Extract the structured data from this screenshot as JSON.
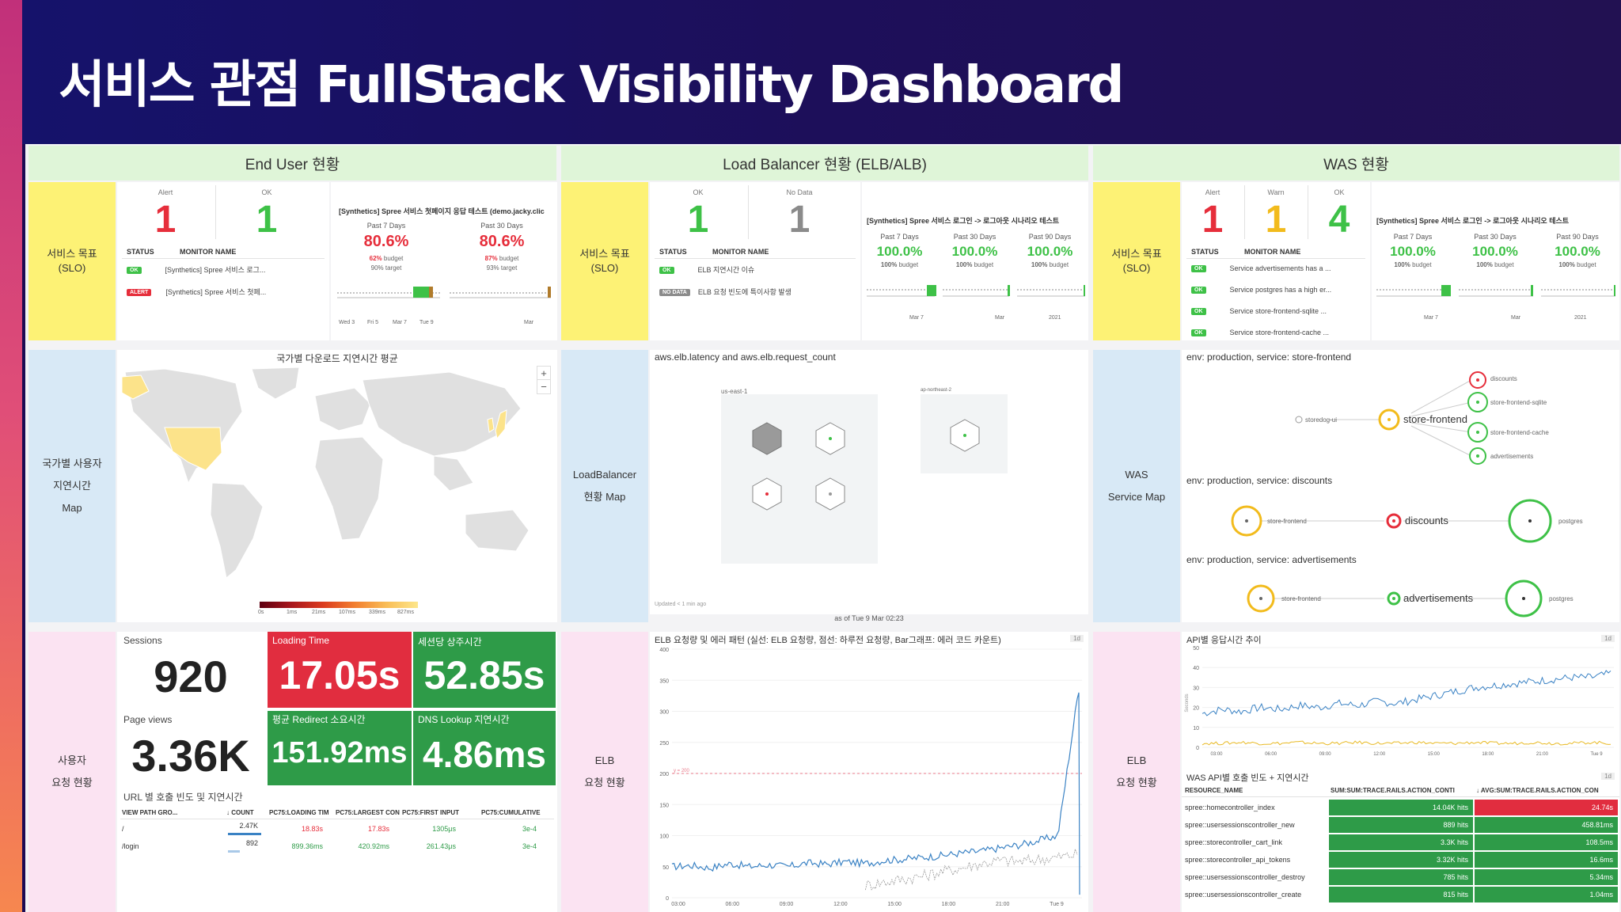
{
  "slide": {
    "title": "서비스 관점 FullStack Visibility Dashboard"
  },
  "sections": {
    "end_user": "End User 현황",
    "load_balancer": "Load Balancer 현황 (ELB/ALB)",
    "was": "WAS 현황"
  },
  "row_labels": {
    "slo_eu_1": "서비스 목표",
    "slo_eu_2": "(SLO)",
    "slo_lb_1": "서비스 목표",
    "slo_lb_2": "(SLO)",
    "slo_was_1": "서비스 목표",
    "slo_was_2": "(SLO)",
    "map_eu_1": "국가별 사용자",
    "map_eu_2": "지연시간",
    "map_eu_3": "Map",
    "map_lb_1": "LoadBalancer",
    "map_lb_2": "현황 Map",
    "map_was_1": "WAS",
    "map_was_2": "Service Map",
    "req_eu_1": "사용자",
    "req_eu_2": "요청 현황",
    "req_lb_1": "ELB",
    "req_lb_2": "요청 현황",
    "req_was_1": "ELB",
    "req_was_2": "요청 현황"
  },
  "slo_panels": {
    "end_user": {
      "counts": [
        {
          "label": "Alert",
          "value": "1",
          "color": "#e62e3b"
        },
        {
          "label": "OK",
          "value": "1",
          "color": "#3ec147"
        }
      ],
      "table_head": {
        "status": "STATUS",
        "name": "MONITOR NAME"
      },
      "monitors": [
        {
          "status": "OK",
          "name": "[Synthetics] Spree 서비스 로그..."
        },
        {
          "status": "ALERT",
          "name": "[Synthetics] Spree 서비스 첫페..."
        }
      ],
      "slo_name": "[Synthetics] Spree 서비스 첫페이지 응답 테스트 (demo.jacky.clic",
      "periods": [
        {
          "label": "Past 7 Days",
          "value": "80.6%",
          "budget_pct": "62%",
          "budget_word": "budget",
          "target": "90% target"
        },
        {
          "label": "Past 30 Days",
          "value": "80.6%",
          "budget_pct": "87%",
          "budget_word": "budget",
          "target": "93% target"
        }
      ],
      "ticks_a": [
        "Wed 3",
        "Fri 5",
        "Mar 7",
        "Tue 9"
      ],
      "ticks_b": [
        "Mar"
      ]
    },
    "load_balancer": {
      "counts": [
        {
          "label": "OK",
          "value": "1",
          "color": "#3ec147"
        },
        {
          "label": "No Data",
          "value": "1",
          "color": "#8b8b8b"
        }
      ],
      "table_head": {
        "status": "STATUS",
        "name": "MONITOR NAME"
      },
      "monitors": [
        {
          "status": "OK",
          "name": "ELB 지연시간 이슈"
        },
        {
          "status": "NO DATA",
          "name": "ELB 요청 빈도에 특이사항 발생"
        }
      ],
      "slo_name": "[Synthetics] Spree 서비스 로그인 -> 로그아웃 시나리오 테스트",
      "periods": [
        {
          "label": "Past 7 Days",
          "value": "100.0%",
          "budget_pct": "100%",
          "budget_word": "budget"
        },
        {
          "label": "Past 30 Days",
          "value": "100.0%",
          "budget_pct": "100%",
          "budget_word": "budget"
        },
        {
          "label": "Past 90 Days",
          "value": "100.0%",
          "budget_pct": "100%",
          "budget_word": "budget"
        }
      ],
      "ticks": [
        "Mar 7",
        "Mar",
        "2021"
      ]
    },
    "was": {
      "counts": [
        {
          "label": "Alert",
          "value": "1",
          "color": "#e62e3b"
        },
        {
          "label": "Warn",
          "value": "1",
          "color": "#f2bb1c"
        },
        {
          "label": "OK",
          "value": "4",
          "color": "#3ec147"
        }
      ],
      "table_head": {
        "status": "STATUS",
        "name": "MONITOR NAME"
      },
      "monitors": [
        {
          "status": "OK",
          "name": "Service advertisements has a ..."
        },
        {
          "status": "OK",
          "name": "Service postgres has a high er..."
        },
        {
          "status": "OK",
          "name": "Service store-frontend-sqlite ..."
        },
        {
          "status": "OK",
          "name": "Service store-frontend-cache ..."
        }
      ],
      "slo_name": "[Synthetics] Spree 서비스 로그인 -> 로그아웃 시나리오 테스트",
      "periods": [
        {
          "label": "Past 7 Days",
          "value": "100.0%",
          "budget_pct": "100%",
          "budget_word": "budget"
        },
        {
          "label": "Past 30 Days",
          "value": "100.0%",
          "budget_pct": "100%",
          "budget_word": "budget"
        },
        {
          "label": "Past 90 Days",
          "value": "100.0%",
          "budget_pct": "100%",
          "budget_word": "budget"
        }
      ],
      "ticks": [
        "Mar 7",
        "Mar",
        "2021"
      ]
    }
  },
  "geo_map": {
    "title": "국가별 다운로드 지연시간 평균",
    "zoom_in": "+",
    "zoom_out": "−",
    "legend": [
      "0s",
      "1ms",
      "21ms",
      "107ms",
      "339ms",
      "827ms"
    ]
  },
  "lb_map": {
    "title": "aws.elb.latency and aws.elb.request_count",
    "region_1": "us-east-1",
    "region_2": "ap-northeast-2",
    "updated": "Updated < 1 min ago",
    "as_of": "as of Tue 9 Mar 02:23"
  },
  "service_map": {
    "blocks": [
      {
        "title": "env: production, service: store-frontend",
        "center": "store-frontend",
        "upstream": "storedog-ui",
        "downstream": [
          "discounts",
          "store-frontend-sqlite",
          "store-frontend-cache",
          "advertisements"
        ]
      },
      {
        "title": "env: production, service: discounts",
        "left": "store-frontend",
        "center": "discounts",
        "right": "postgres"
      },
      {
        "title": "env: production, service: advertisements",
        "left": "store-frontend",
        "center": "advertisements",
        "right": "postgres"
      }
    ]
  },
  "rum": {
    "sessions_label": "Sessions",
    "sessions": "920",
    "loading_label": "Loading Time",
    "loading": "17.05s",
    "session_dur_label": "세션당 상주시간",
    "session_dur": "52.85s",
    "pageviews_label": "Page views",
    "pageviews": "3.36K",
    "redirect_label": "평균 Redirect 소요시간",
    "redirect": "151.92ms",
    "dns_label": "DNS Lookup 지연시간",
    "dns": "4.86ms",
    "url_table": {
      "title": "URL 별 호출 빈도 및 지연시간",
      "columns": [
        "VIEW PATH GRO...",
        "↓ COUNT",
        "PC75:LOADING TIM",
        "PC75:LARGEST CON",
        "PC75:FIRST INPUT",
        "PC75:CUMULATIVE"
      ],
      "rows": [
        {
          "path": "/",
          "count": "2.47K",
          "loading": "18.83s",
          "largest": "17.83s",
          "first_input": "1305μs",
          "cumulative": "3e-4"
        },
        {
          "path": "/login",
          "count": "892",
          "loading": "899.36ms",
          "largest": "420.92ms",
          "first_input": "261.43μs",
          "cumulative": "3e-4"
        }
      ]
    }
  },
  "elb_chart": {
    "title": "ELB 요청량 및 에러 패턴 (실선: ELB 요청량, 점선: 하루전 요청량, Bar그래프: 에러 코드 카운트)",
    "badge": "1d",
    "threshold_label": "y = 200",
    "y_ticks": [
      "400",
      "350",
      "300",
      "250",
      "200",
      "150",
      "100",
      "50",
      "0"
    ],
    "x_ticks": [
      "03:00",
      "06:00",
      "09:00",
      "12:00",
      "15:00",
      "18:00",
      "21:00",
      "Tue 9"
    ]
  },
  "chart_data": [
    {
      "type": "line",
      "title": "ELB 요청량 및 에러 패턴 (실선: ELB 요청량, 점선: 하루전 요청량, Bar그래프: 에러 코드 카운트)",
      "ylim": [
        0,
        400
      ],
      "x_ticks": [
        "03:00",
        "06:00",
        "09:00",
        "12:00",
        "15:00",
        "18:00",
        "21:00",
        "Tue 9"
      ],
      "threshold": 200,
      "series": [
        {
          "name": "ELB 요청량",
          "style": "solid",
          "color": "#3a82c4",
          "values": [
            50,
            52,
            48,
            55,
            50,
            53,
            50,
            56,
            54,
            58,
            55,
            60,
            62,
            65,
            68,
            72,
            75,
            80,
            85,
            92,
            100,
            320
          ]
        },
        {
          "name": "하루전 요청량",
          "style": "dotted",
          "color": "#999999",
          "values": [
            null,
            null,
            null,
            null,
            null,
            null,
            null,
            null,
            null,
            null,
            20,
            25,
            30,
            35,
            42,
            48,
            55,
            60,
            58,
            62,
            65,
            70
          ]
        }
      ]
    },
    {
      "type": "line",
      "title": "API별 응답시간 추이",
      "ylim": [
        0,
        50
      ],
      "ylabel": "Seconds",
      "x_ticks": [
        "03:00",
        "06:00",
        "09:00",
        "12:00",
        "15:00",
        "18:00",
        "21:00",
        "Tue 9"
      ],
      "series": [
        {
          "values": [
            17,
            19,
            18,
            20,
            19,
            21,
            20,
            22,
            21,
            23,
            22,
            24,
            26,
            28,
            30,
            31,
            32,
            33,
            34,
            35,
            35,
            37
          ]
        },
        {
          "values": [
            2,
            2,
            2.5,
            2,
            2,
            2.5,
            2,
            2,
            2.5,
            2,
            2,
            2.5,
            2,
            2,
            2.5,
            2,
            2,
            2.5,
            2,
            2,
            2.5,
            2
          ]
        }
      ]
    }
  ],
  "api_chart": {
    "title": "API별 응답시간 추이",
    "badge": "1d",
    "ylabel": "Seconds",
    "y_ticks": [
      "50",
      "40",
      "30",
      "20",
      "10",
      "0"
    ],
    "x_ticks": [
      "03:00",
      "06:00",
      "09:00",
      "12:00",
      "15:00",
      "18:00",
      "21:00",
      "Tue 9"
    ]
  },
  "was_table": {
    "title": "WAS API별 호출 빈도 + 지연시간",
    "badge": "1d",
    "columns": [
      "RESOURCE_NAME",
      "SUM:SUM:TRACE.RAILS.ACTION_CONTI",
      "↓ AVG:SUM:TRACE.RAILS.ACTION_CON"
    ],
    "rows": [
      {
        "name": "spree::homecontroller_index",
        "hits": "14.04K hits",
        "latency": "24.74s",
        "alert": true
      },
      {
        "name": "spree::usersessionscontroller_new",
        "hits": "889 hits",
        "latency": "458.81ms",
        "alert": false
      },
      {
        "name": "spree::storecontroller_cart_link",
        "hits": "3.3K hits",
        "latency": "108.5ms",
        "alert": false
      },
      {
        "name": "spree::storecontroller_api_tokens",
        "hits": "3.32K hits",
        "latency": "16.6ms",
        "alert": false
      },
      {
        "name": "spree::usersessionscontroller_destroy",
        "hits": "785 hits",
        "latency": "5.34ms",
        "alert": false
      },
      {
        "name": "spree::usersessionscontroller_create",
        "hits": "815 hits",
        "latency": "1.04ms",
        "alert": false
      }
    ]
  }
}
